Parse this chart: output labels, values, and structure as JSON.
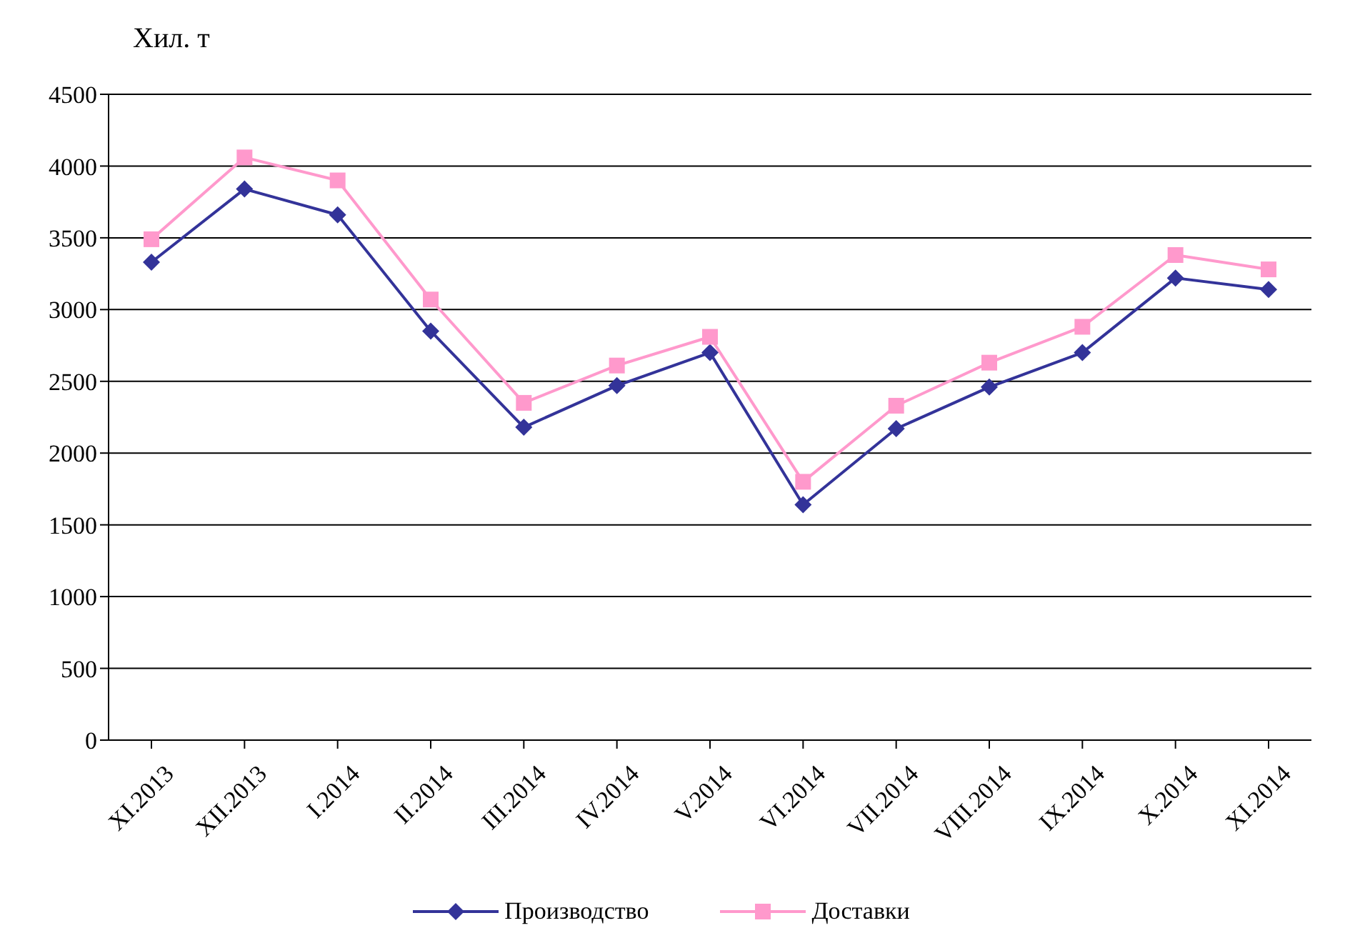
{
  "chart_data": {
    "type": "line",
    "ylabel": "Хил. т",
    "categories": [
      "XI.2013",
      "XII.2013",
      "I.2014",
      "II.2014",
      "III.2014",
      "IV.2014",
      "V.2014",
      "VI.2014",
      "VII.2014",
      "VIII.2014",
      "IX.2014",
      "X.2014",
      "XI.2014"
    ],
    "series": [
      {
        "name": "Производство",
        "color": "#333399",
        "marker": "diamond",
        "values": [
          3330,
          3840,
          3660,
          2850,
          2180,
          2470,
          2700,
          1640,
          2170,
          2460,
          2700,
          3220,
          3140
        ]
      },
      {
        "name": "Доставки",
        "color": "#ff99cc",
        "marker": "square",
        "values": [
          3490,
          4060,
          3900,
          3070,
          2350,
          2610,
          2810,
          1800,
          2330,
          2630,
          2880,
          3380,
          3280
        ]
      }
    ],
    "ylim": [
      0,
      4500
    ],
    "yticks": [
      0,
      500,
      1000,
      1500,
      2000,
      2500,
      3000,
      3500,
      4000,
      4500
    ],
    "grid": "y",
    "legend": "bottom"
  }
}
